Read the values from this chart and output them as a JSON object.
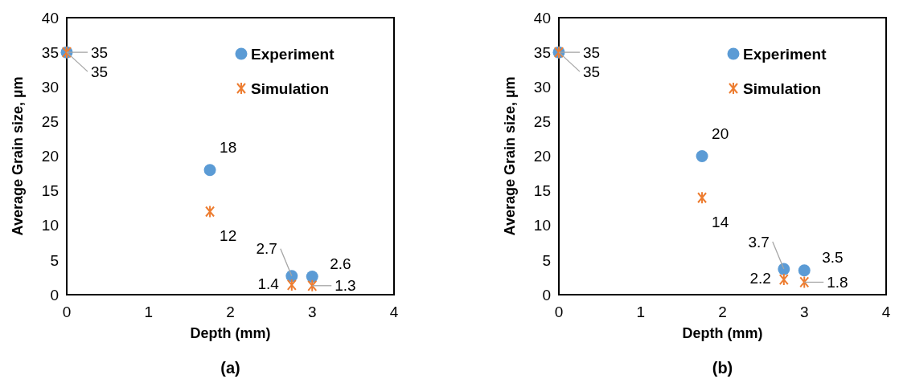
{
  "chart_data": [
    {
      "type": "scatter",
      "title": "(a)",
      "xlabel": "Depth (mm)",
      "ylabel": "Average Grain size, µm",
      "x": [
        0,
        1.75,
        2.75,
        3
      ],
      "xlim": [
        0,
        4
      ],
      "xticks": [
        0,
        1,
        2,
        3,
        4
      ],
      "ylim": [
        0,
        40
      ],
      "yticks": [
        0,
        5,
        10,
        15,
        20,
        25,
        30,
        35,
        40
      ],
      "grid": false,
      "legend": "top right",
      "data_labels": true,
      "series": [
        {
          "name": "Experiment",
          "color": "#5b9bd5",
          "marker": "circle",
          "values": [
            35,
            18,
            2.7,
            2.6
          ]
        },
        {
          "name": "Simulation",
          "color": "#ed7d31",
          "marker": "cross",
          "values": [
            35,
            12,
            1.4,
            1.3
          ]
        }
      ]
    },
    {
      "type": "scatter",
      "title": "(b)",
      "xlabel": "Depth (mm)",
      "ylabel": "Average Grain size, µm",
      "x": [
        0,
        1.75,
        2.75,
        3
      ],
      "xlim": [
        0,
        4
      ],
      "xticks": [
        0,
        1,
        2,
        3,
        4
      ],
      "ylim": [
        0,
        40
      ],
      "yticks": [
        0,
        5,
        10,
        15,
        20,
        25,
        30,
        35,
        40
      ],
      "grid": false,
      "legend": "top right",
      "data_labels": true,
      "series": [
        {
          "name": "Experiment",
          "color": "#5b9bd5",
          "marker": "circle",
          "values": [
            35,
            20,
            3.7,
            3.5
          ]
        },
        {
          "name": "Simulation",
          "color": "#ed7d31",
          "marker": "cross",
          "values": [
            35,
            14,
            2.2,
            1.8
          ]
        }
      ]
    }
  ]
}
